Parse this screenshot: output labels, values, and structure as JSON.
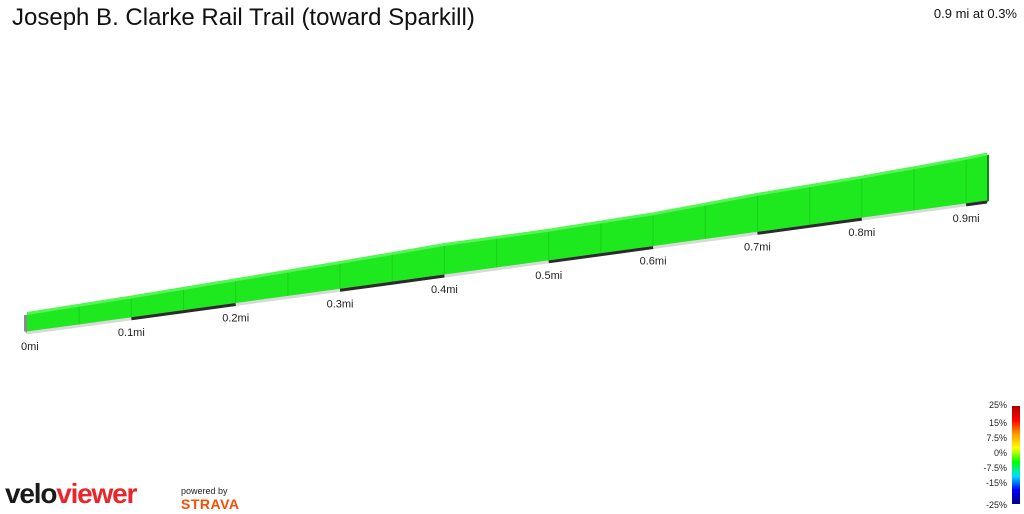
{
  "header": {
    "title": "Joseph B. Clarke Rail Trail (toward Sparkill)",
    "summary": "0.9 mi at 0.3%"
  },
  "colors": {
    "profile_fill": "#1ee81e",
    "profile_light": "#55f555",
    "profile_edge": "#0a8a0a",
    "baseline_light": "#d9d9d9",
    "baseline_dark": "#2b2b2b",
    "brand_red": "#e8262c",
    "strava_orange": "#fc4c02"
  },
  "chart_data": {
    "type": "area",
    "title": "Joseph B. Clarke Rail Trail (toward Sparkill)",
    "xunit": "mi",
    "x": [
      0,
      0.1,
      0.2,
      0.3,
      0.4,
      0.5,
      0.6,
      0.7,
      0.8,
      0.9,
      0.92
    ],
    "relative_elevation": [
      0,
      0.3,
      0.7,
      1.1,
      1.6,
      1.6,
      1.9,
      2.6,
      3.0,
      3.6,
      3.8
    ],
    "tick_labels": [
      "0mi",
      "0.1mi",
      "0.2mi",
      "0.3mi",
      "0.4mi",
      "0.5mi",
      "0.6mi",
      "0.7mi",
      "0.8mi",
      "0.9mi"
    ],
    "gradient_legend": {
      "labels": [
        "25%",
        "15%",
        "7.5%",
        "0%",
        "-7.5%",
        "-15%",
        "-25%"
      ],
      "colors": [
        "#b00000",
        "#ff0000",
        "#ff9900",
        "#ffff00",
        "#00ff00",
        "#00e0ff",
        "#0000ff",
        "#000080"
      ]
    }
  },
  "branding": {
    "logo_part1": "velo",
    "logo_part2": "viewer",
    "powered_by": "powered by",
    "strava": "STRAVA"
  }
}
